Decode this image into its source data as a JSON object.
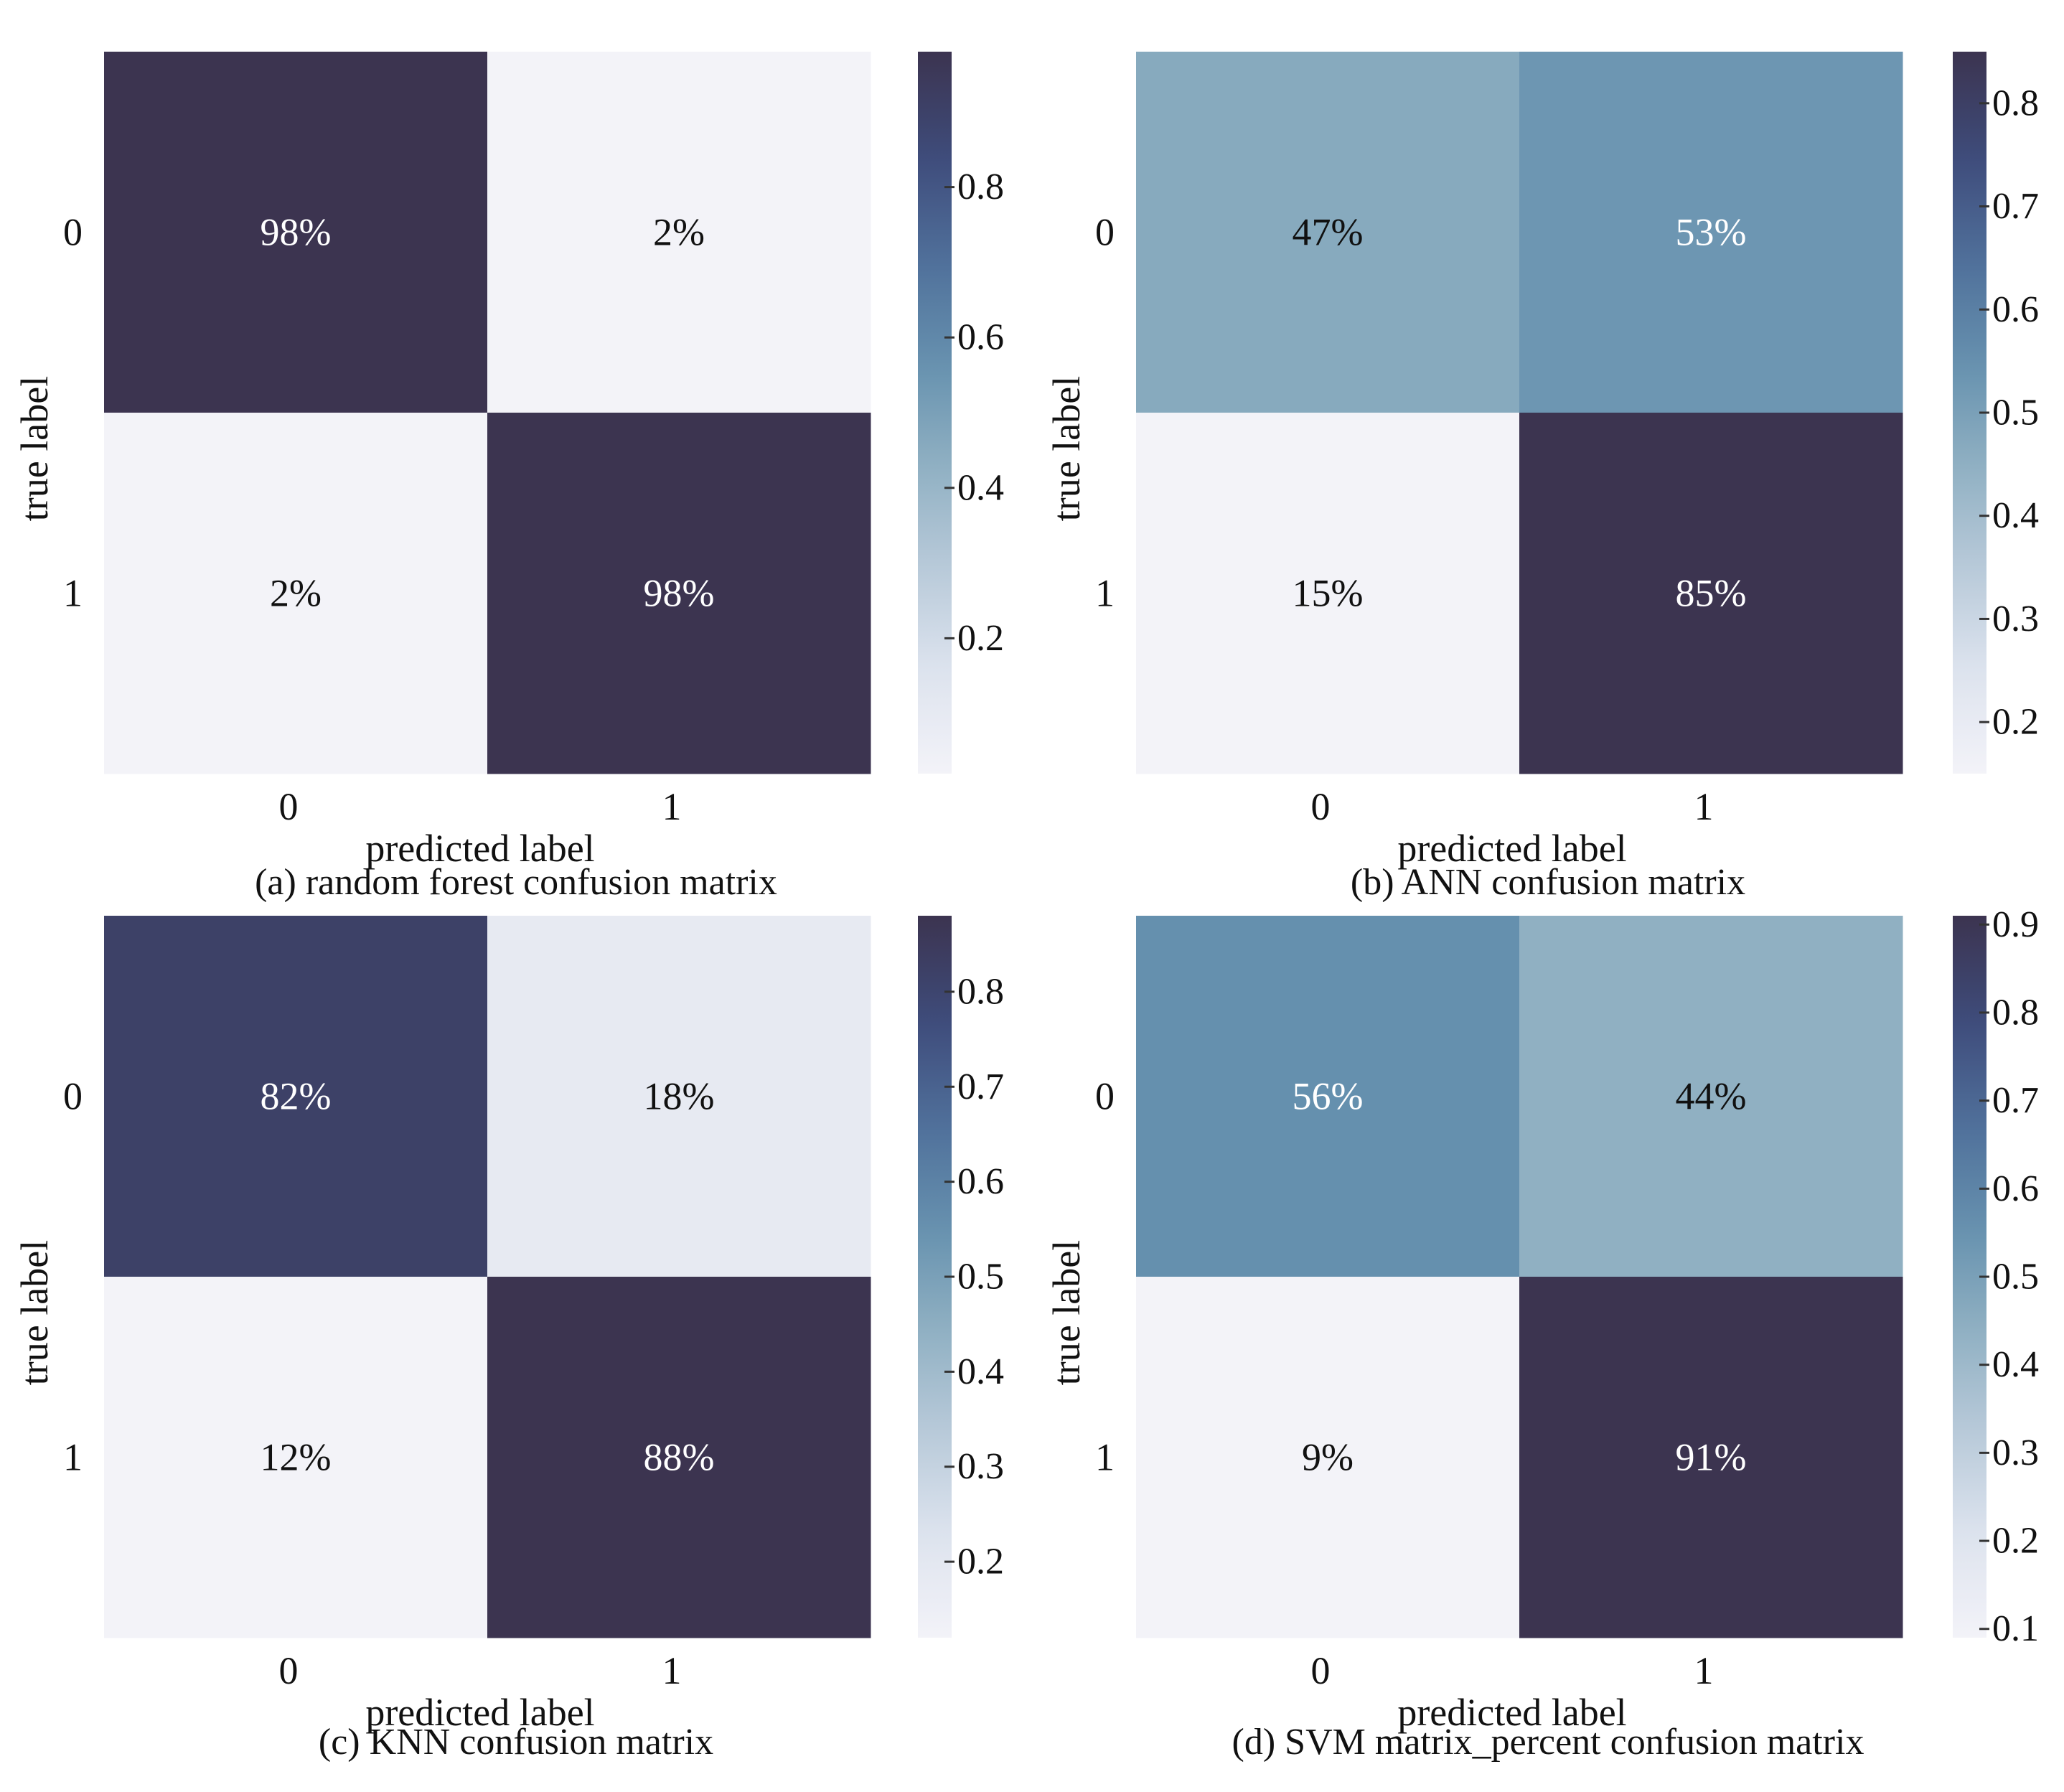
{
  "chart_data": [
    {
      "type": "heatmap",
      "caption": "(a) random forest confusion matrix",
      "xlabel": "predicted label",
      "ylabel": "true label",
      "x_categories": [
        "0",
        "1"
      ],
      "y_categories": [
        "0",
        "1"
      ],
      "values": [
        [
          0.98,
          0.02
        ],
        [
          0.02,
          0.98
        ]
      ],
      "cell_labels": [
        [
          "98%",
          "2%"
        ],
        [
          "2%",
          "98%"
        ]
      ],
      "colorbar": {
        "range": [
          0.02,
          0.98
        ],
        "ticks": [
          0.2,
          0.4,
          0.6,
          0.8
        ],
        "tick_labels": [
          "0.2",
          "0.4",
          "0.6",
          "0.8"
        ]
      }
    },
    {
      "type": "heatmap",
      "caption": "(b) ANN confusion matrix",
      "xlabel": "predicted label",
      "ylabel": "true label",
      "x_categories": [
        "0",
        "1"
      ],
      "y_categories": [
        "0",
        "1"
      ],
      "values": [
        [
          0.47,
          0.53
        ],
        [
          0.15,
          0.85
        ]
      ],
      "cell_labels": [
        [
          "47%",
          "53%"
        ],
        [
          "15%",
          "85%"
        ]
      ],
      "colorbar": {
        "range": [
          0.15,
          0.85
        ],
        "ticks": [
          0.2,
          0.3,
          0.4,
          0.5,
          0.6,
          0.7,
          0.8
        ],
        "tick_labels": [
          "0.2",
          "0.3",
          "0.4",
          "0.5",
          "0.6",
          "0.7",
          "0.8"
        ]
      }
    },
    {
      "type": "heatmap",
      "caption": "(c) KNN confusion matrix",
      "xlabel": "predicted label",
      "ylabel": "true label",
      "x_categories": [
        "0",
        "1"
      ],
      "y_categories": [
        "0",
        "1"
      ],
      "values": [
        [
          0.82,
          0.18
        ],
        [
          0.12,
          0.88
        ]
      ],
      "cell_labels": [
        [
          "82%",
          "18%"
        ],
        [
          "12%",
          "88%"
        ]
      ],
      "colorbar": {
        "range": [
          0.12,
          0.88
        ],
        "ticks": [
          0.2,
          0.3,
          0.4,
          0.5,
          0.6,
          0.7,
          0.8
        ],
        "tick_labels": [
          "0.2",
          "0.3",
          "0.4",
          "0.5",
          "0.6",
          "0.7",
          "0.8"
        ]
      }
    },
    {
      "type": "heatmap",
      "caption": "(d) SVM matrix_percent confusion matrix",
      "xlabel": "predicted label",
      "ylabel": "true label",
      "x_categories": [
        "0",
        "1"
      ],
      "y_categories": [
        "0",
        "1"
      ],
      "values": [
        [
          0.56,
          0.44
        ],
        [
          0.09,
          0.91
        ]
      ],
      "cell_labels": [
        [
          "56%",
          "44%"
        ],
        [
          "9%",
          "91%"
        ]
      ],
      "colorbar": {
        "range": [
          0.09,
          0.91
        ],
        "ticks": [
          0.1,
          0.2,
          0.3,
          0.4,
          0.5,
          0.6,
          0.7,
          0.8,
          0.9
        ],
        "tick_labels": [
          "0.1",
          "0.2",
          "0.3",
          "0.4",
          "0.5",
          "0.6",
          "0.7",
          "0.8",
          "0.9"
        ]
      }
    }
  ],
  "colors": {
    "colormap": [
      "#f3f3f8",
      "#dde3ee",
      "#b8cad9",
      "#8fb0c2",
      "#6590ae",
      "#4f6f9a",
      "#3e4b7a",
      "#3c3450"
    ],
    "text_light": "#ffffff",
    "text_dark": "#111111"
  }
}
